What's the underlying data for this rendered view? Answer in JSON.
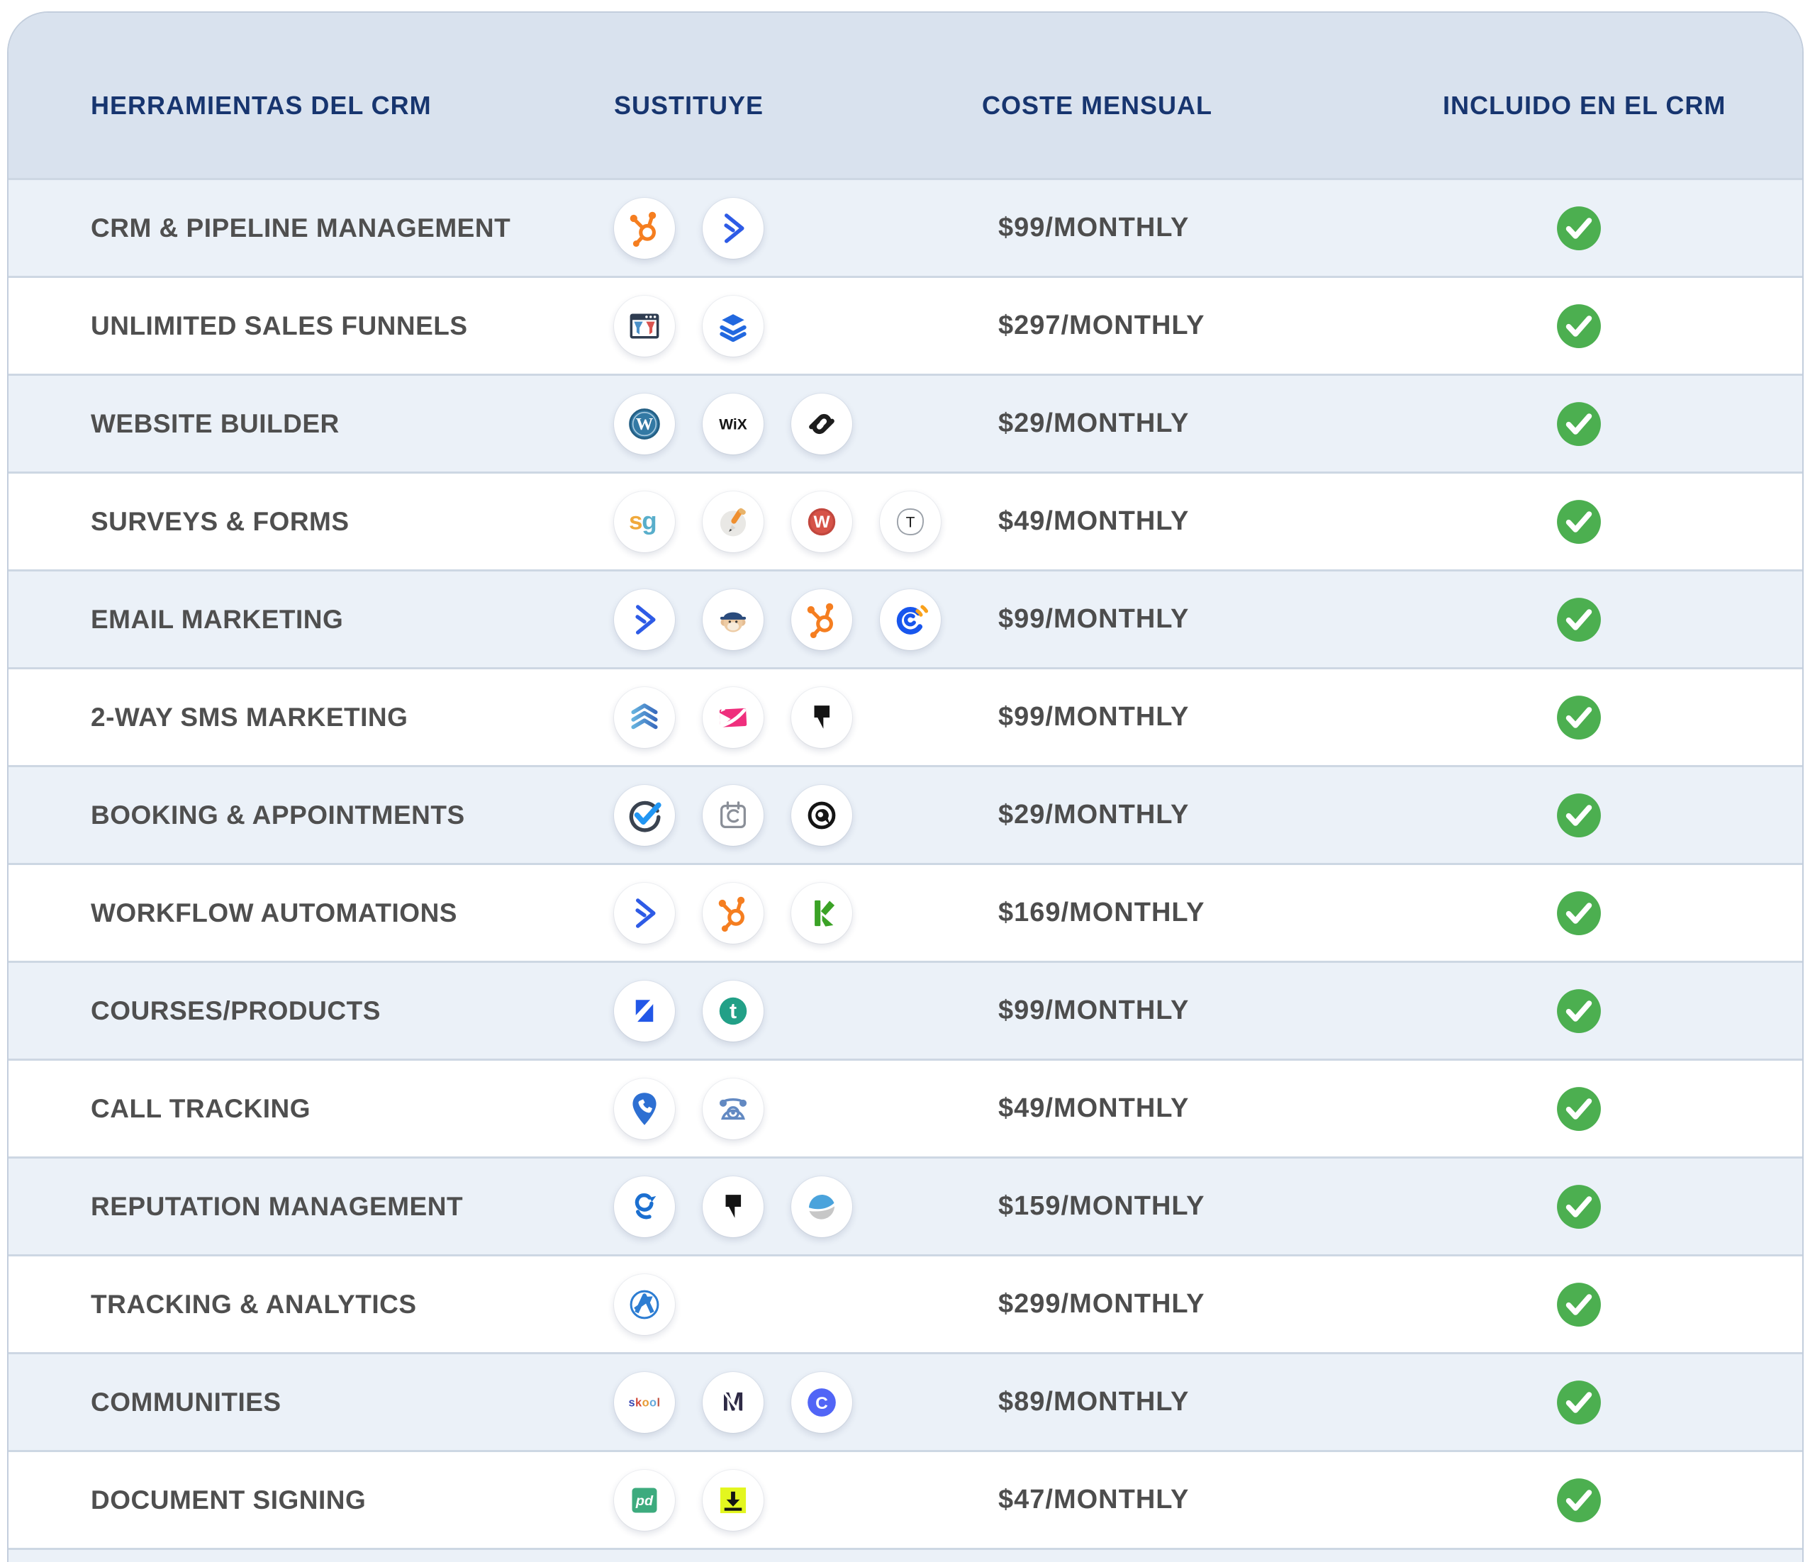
{
  "chart_data": {
    "type": "table",
    "columns": [
      "HERRAMIENTAS DEL CRM",
      "SUSTITUYE",
      "COSTE MENSUAL",
      "INCLUIDO EN EL CRM"
    ],
    "rows": [
      {
        "tool": "CRM & PIPELINE MANAGEMENT",
        "replaces": [
          "hubspot",
          "activecampaign"
        ],
        "cost": "$99/MONTHLY",
        "included": true
      },
      {
        "tool": "UNLIMITED SALES FUNNELS",
        "replaces": [
          "clickfunnels",
          "leadpages"
        ],
        "cost": "$297/MONTHLY",
        "included": true
      },
      {
        "tool": "WEBSITE BUILDER",
        "replaces": [
          "wordpress",
          "wix",
          "squarespace"
        ],
        "cost": "$29/MONTHLY",
        "included": true
      },
      {
        "tool": "SURVEYS & FORMS",
        "replaces": [
          "surveygizmo",
          "jotform-pencil",
          "wufoo",
          "typeform"
        ],
        "cost": "$49/MONTHLY",
        "included": true
      },
      {
        "tool": "EMAIL MARKETING",
        "replaces": [
          "activecampaign",
          "mailchimp",
          "hubspot",
          "constant-contact"
        ],
        "cost": "$99/MONTHLY",
        "included": true
      },
      {
        "tool": "2-WAY SMS MARKETING",
        "replaces": [
          "chevrons-up",
          "pink-envelope",
          "podium"
        ],
        "cost": "$99/MONTHLY",
        "included": true
      },
      {
        "tool": "BOOKING & APPOINTMENTS",
        "replaces": [
          "check-circle",
          "calendly",
          "acuity"
        ],
        "cost": "$29/MONTHLY",
        "included": true
      },
      {
        "tool": "WORKFLOW AUTOMATIONS",
        "replaces": [
          "activecampaign",
          "hubspot",
          "keap"
        ],
        "cost": "$169/MONTHLY",
        "included": true
      },
      {
        "tool": "COURSES/PRODUCTS",
        "replaces": [
          "kajabi",
          "teachable"
        ],
        "cost": "$99/MONTHLY",
        "included": true
      },
      {
        "tool": "CALL TRACKING",
        "replaces": [
          "callrail",
          "retro-phone"
        ],
        "cost": "$49/MONTHLY",
        "included": true
      },
      {
        "tool": "REPUTATION MANAGEMENT",
        "replaces": [
          "birdeye",
          "podium",
          "swirl"
        ],
        "cost": "$159/MONTHLY",
        "included": true
      },
      {
        "tool": "TRACKING & ANALYTICS",
        "replaces": [
          "agency-analytics"
        ],
        "cost": "$299/MONTHLY",
        "included": true
      },
      {
        "tool": "COMMUNITIES",
        "replaces": [
          "skool",
          "mighty-networks",
          "circle"
        ],
        "cost": "$89/MONTHLY",
        "included": true
      },
      {
        "tool": "DOCUMENT SIGNING",
        "replaces": [
          "pandadoc",
          "docusign"
        ],
        "cost": "$47/MONTHLY",
        "included": true
      }
    ]
  },
  "colors": {
    "header_text_navy": "#17356f",
    "row_label_gray": "#4f4f4f",
    "price_gray": "#4d4d4d",
    "check_green": "#4caf50",
    "header_bg": "#d9e2ee",
    "row_alt_bg": "#ebf1f8",
    "divider": "#cdd7e3"
  },
  "included_icon": "green-check-icon"
}
